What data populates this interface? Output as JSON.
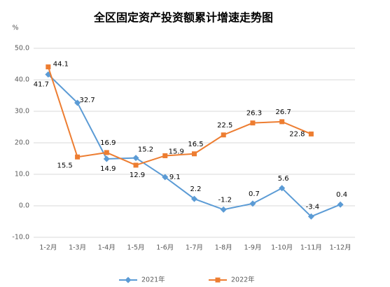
{
  "chart_data": {
    "type": "line",
    "title": "全区固定资产投资额累计增速走势图",
    "y_label": "%",
    "categories": [
      "1-2月",
      "1-3月",
      "1-4月",
      "1-5月",
      "1-6月",
      "1-7月",
      "1-8月",
      "1-9月",
      "1-10月",
      "1-11月",
      "1-12月"
    ],
    "series": [
      {
        "name": "2021年",
        "color": "#5b9bd5",
        "marker": "diamond",
        "values": [
          41.7,
          32.7,
          14.9,
          15.2,
          9.1,
          2.2,
          -1.2,
          0.7,
          5.6,
          -3.4,
          0.4
        ]
      },
      {
        "name": "2022年",
        "color": "#ed7d31",
        "marker": "square",
        "values": [
          44.1,
          15.5,
          16.9,
          12.9,
          15.9,
          16.5,
          22.5,
          26.3,
          26.7,
          22.8,
          null
        ]
      }
    ],
    "ylim": [
      -10,
      50
    ],
    "yticks": [
      {
        "value": -10,
        "label": "-10.0"
      },
      {
        "value": 0,
        "label": "0.0"
      },
      {
        "value": 10,
        "label": "10.0"
      },
      {
        "value": 20,
        "label": "20.0"
      },
      {
        "value": 30,
        "label": "30.0"
      },
      {
        "value": 40,
        "label": "40.0"
      },
      {
        "value": 50,
        "label": "50.0"
      }
    ],
    "grid": true,
    "legend": "bottom"
  }
}
